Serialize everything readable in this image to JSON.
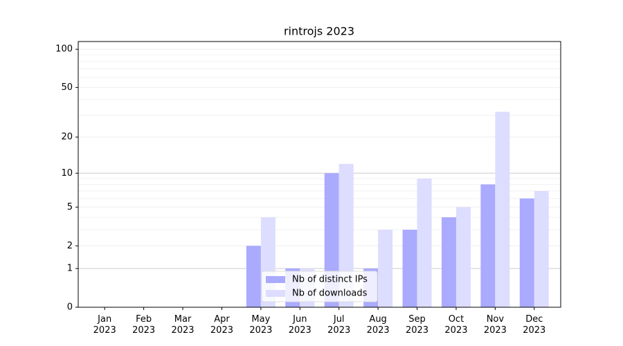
{
  "chart_data": {
    "type": "bar",
    "title": "rintrojs 2023",
    "categories": [
      "Jan 2023",
      "Feb 2023",
      "Mar 2023",
      "Apr 2023",
      "May 2023",
      "Jun 2023",
      "Jul 2023",
      "Aug 2023",
      "Sep 2023",
      "Oct 2023",
      "Nov 2023",
      "Dec 2023"
    ],
    "series": [
      {
        "name": "Nb of distinct IPs",
        "color": "#aaaaff",
        "values": [
          0,
          0,
          0,
          0,
          2,
          1,
          10,
          1,
          3,
          4,
          8,
          6
        ]
      },
      {
        "name": "Nb of downloads",
        "color": "#ddddff",
        "values": [
          0,
          0,
          0,
          0,
          4,
          1,
          12,
          3,
          9,
          5,
          32,
          7
        ]
      }
    ],
    "yscale": "log1p",
    "ylim": [
      0,
      115
    ],
    "yticks": [
      0,
      1,
      2,
      5,
      10,
      20,
      50,
      100
    ],
    "yminorticks": [
      3,
      4,
      6,
      7,
      8,
      9,
      30,
      40,
      60,
      70,
      80,
      90
    ],
    "grid": true,
    "legend": "lower center"
  }
}
